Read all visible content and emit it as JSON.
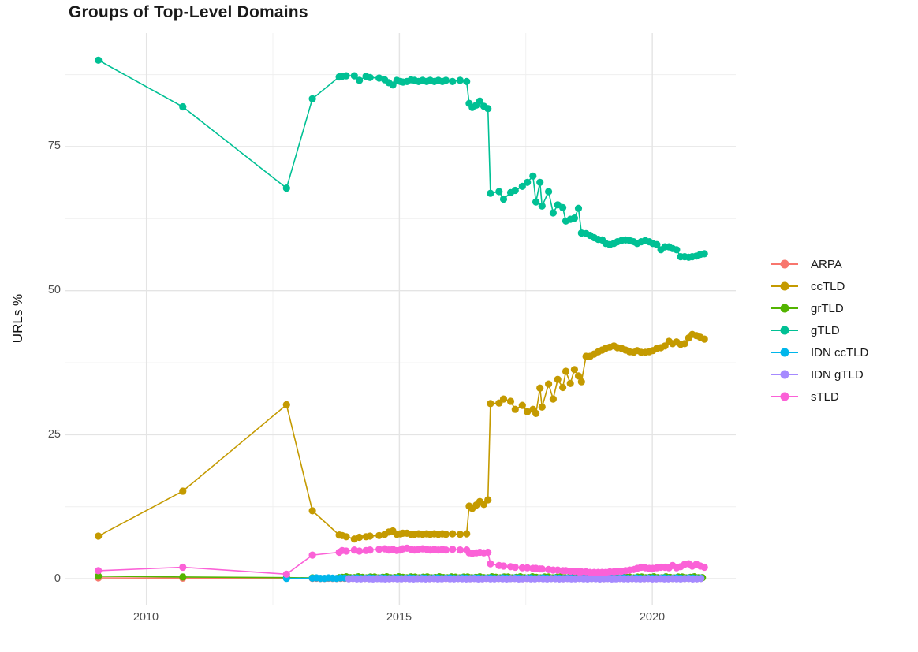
{
  "chart_data": {
    "type": "scatter",
    "title": "Groups of Top-Level Domains",
    "xlabel": "",
    "ylabel": "URLs %",
    "grid": "major+minor, light gray on white",
    "legend_position": "right",
    "xlim": [
      2008.4,
      2021.65
    ],
    "ylim": [
      -4.5,
      94.7
    ],
    "x_ticks": [
      2010,
      2015,
      2020
    ],
    "x_tick_labels": [
      "2010",
      "2015",
      "2020"
    ],
    "x_minor_gridlines": [
      2012.5,
      2017.5
    ],
    "y_ticks": [
      0,
      25,
      50,
      75
    ],
    "y_tick_labels": [
      "0",
      "25",
      "50",
      "75"
    ],
    "y_minor_gridlines": [
      12.5,
      37.5,
      62.5,
      87.5
    ],
    "series": [
      {
        "name": "ARPA",
        "color": "#F8766D",
        "points": [
          [
            2009.05,
            0.15
          ],
          [
            2010.72,
            0.1
          ],
          [
            2012.77,
            0.1
          ]
        ],
        "flat": {
          "from": 2013.28,
          "to": 2021.03,
          "step": 0.08,
          "value": 0.05,
          "wiggle": 0.03
        }
      },
      {
        "name": "ccTLD",
        "color": "#C49A00",
        "points": [
          [
            2009.05,
            7.4
          ],
          [
            2010.72,
            15.2
          ],
          [
            2012.77,
            30.2
          ],
          [
            2013.28,
            11.8
          ],
          [
            2013.81,
            7.6
          ],
          [
            2013.87,
            7.5
          ],
          [
            2013.95,
            7.3
          ],
          [
            2014.11,
            6.9
          ],
          [
            2014.21,
            7.2
          ],
          [
            2014.34,
            7.3
          ],
          [
            2014.42,
            7.4
          ],
          [
            2014.6,
            7.5
          ],
          [
            2014.71,
            7.7
          ],
          [
            2014.79,
            8.1
          ],
          [
            2014.87,
            8.3
          ],
          [
            2014.95,
            7.7
          ],
          [
            2015.02,
            7.8
          ],
          [
            2015.07,
            7.9
          ],
          [
            2015.15,
            7.9
          ],
          [
            2015.23,
            7.7
          ],
          [
            2015.3,
            7.7
          ],
          [
            2015.38,
            7.8
          ],
          [
            2015.46,
            7.7
          ],
          [
            2015.54,
            7.8
          ],
          [
            2015.61,
            7.7
          ],
          [
            2015.69,
            7.8
          ],
          [
            2015.77,
            7.7
          ],
          [
            2015.85,
            7.8
          ],
          [
            2015.92,
            7.7
          ],
          [
            2016.05,
            7.8
          ],
          [
            2016.2,
            7.7
          ],
          [
            2016.33,
            7.8
          ],
          [
            2016.38,
            12.6
          ],
          [
            2016.44,
            12.2
          ],
          [
            2016.52,
            12.8
          ],
          [
            2016.59,
            13.4
          ],
          [
            2016.67,
            12.9
          ],
          [
            2016.75,
            13.7
          ],
          [
            2016.8,
            30.4
          ],
          [
            2016.97,
            30.5
          ],
          [
            2017.06,
            31.2
          ],
          [
            2017.2,
            30.8
          ],
          [
            2017.29,
            29.4
          ],
          [
            2017.43,
            30.1
          ],
          [
            2017.53,
            29.0
          ],
          [
            2017.64,
            29.4
          ],
          [
            2017.7,
            28.7
          ],
          [
            2017.78,
            33.1
          ],
          [
            2017.82,
            29.8
          ],
          [
            2017.95,
            33.8
          ],
          [
            2018.04,
            31.2
          ],
          [
            2018.13,
            34.6
          ],
          [
            2018.23,
            33.2
          ],
          [
            2018.29,
            36.0
          ],
          [
            2018.38,
            33.9
          ],
          [
            2018.46,
            36.3
          ],
          [
            2018.54,
            35.2
          ],
          [
            2018.6,
            34.2
          ],
          [
            2018.69,
            38.6
          ],
          [
            2018.77,
            38.6
          ],
          [
            2018.85,
            39.0
          ],
          [
            2018.93,
            39.4
          ],
          [
            2019.01,
            39.7
          ],
          [
            2019.08,
            40.0
          ],
          [
            2019.16,
            40.2
          ],
          [
            2019.24,
            40.4
          ],
          [
            2019.31,
            40.1
          ],
          [
            2019.39,
            40.0
          ],
          [
            2019.47,
            39.7
          ],
          [
            2019.55,
            39.4
          ],
          [
            2019.63,
            39.3
          ],
          [
            2019.7,
            39.6
          ],
          [
            2019.78,
            39.3
          ],
          [
            2019.86,
            39.3
          ],
          [
            2019.94,
            39.4
          ],
          [
            2020.01,
            39.6
          ],
          [
            2020.09,
            40.0
          ],
          [
            2020.17,
            40.1
          ],
          [
            2020.25,
            40.4
          ],
          [
            2020.33,
            41.2
          ],
          [
            2020.4,
            40.8
          ],
          [
            2020.48,
            41.1
          ],
          [
            2020.56,
            40.7
          ],
          [
            2020.64,
            40.8
          ],
          [
            2020.72,
            41.8
          ],
          [
            2020.79,
            42.4
          ],
          [
            2020.87,
            42.2
          ],
          [
            2020.95,
            41.9
          ],
          [
            2021.03,
            41.6
          ]
        ]
      },
      {
        "name": "grTLD",
        "color": "#53B400",
        "points": [
          [
            2009.05,
            0.45
          ],
          [
            2010.72,
            0.3
          ],
          [
            2012.77,
            0.2
          ],
          [
            2013.28,
            0.15
          ],
          [
            2013.81,
            0.2
          ]
        ],
        "flat": {
          "from": 2013.87,
          "to": 2021.03,
          "step": 0.08,
          "value": 0.25,
          "wiggle": 0.1
        }
      },
      {
        "name": "gTLD",
        "color": "#00C094",
        "points": [
          [
            2009.05,
            90.0
          ],
          [
            2010.72,
            81.9
          ],
          [
            2012.77,
            67.8
          ],
          [
            2013.28,
            83.3
          ],
          [
            2013.81,
            87.1
          ],
          [
            2013.87,
            87.2
          ],
          [
            2013.95,
            87.3
          ],
          [
            2014.11,
            87.3
          ],
          [
            2014.21,
            86.5
          ],
          [
            2014.34,
            87.2
          ],
          [
            2014.42,
            87.0
          ],
          [
            2014.6,
            86.9
          ],
          [
            2014.71,
            86.6
          ],
          [
            2014.79,
            86.1
          ],
          [
            2014.87,
            85.7
          ],
          [
            2014.95,
            86.5
          ],
          [
            2015.02,
            86.3
          ],
          [
            2015.07,
            86.2
          ],
          [
            2015.15,
            86.3
          ],
          [
            2015.23,
            86.6
          ],
          [
            2015.3,
            86.5
          ],
          [
            2015.38,
            86.3
          ],
          [
            2015.46,
            86.5
          ],
          [
            2015.54,
            86.3
          ],
          [
            2015.61,
            86.5
          ],
          [
            2015.69,
            86.3
          ],
          [
            2015.77,
            86.5
          ],
          [
            2015.85,
            86.3
          ],
          [
            2015.92,
            86.5
          ],
          [
            2016.05,
            86.3
          ],
          [
            2016.2,
            86.5
          ],
          [
            2016.33,
            86.3
          ],
          [
            2016.38,
            82.5
          ],
          [
            2016.44,
            81.8
          ],
          [
            2016.52,
            82.2
          ],
          [
            2016.59,
            82.9
          ],
          [
            2016.67,
            82.0
          ],
          [
            2016.75,
            81.6
          ],
          [
            2016.8,
            66.9
          ],
          [
            2016.97,
            67.2
          ],
          [
            2017.06,
            65.9
          ],
          [
            2017.2,
            67.0
          ],
          [
            2017.29,
            67.4
          ],
          [
            2017.43,
            68.1
          ],
          [
            2017.53,
            68.8
          ],
          [
            2017.64,
            69.9
          ],
          [
            2017.7,
            65.4
          ],
          [
            2017.78,
            68.8
          ],
          [
            2017.82,
            64.7
          ],
          [
            2017.95,
            67.2
          ],
          [
            2018.04,
            63.5
          ],
          [
            2018.13,
            64.9
          ],
          [
            2018.23,
            64.4
          ],
          [
            2018.29,
            62.1
          ],
          [
            2018.38,
            62.4
          ],
          [
            2018.46,
            62.6
          ],
          [
            2018.54,
            64.3
          ],
          [
            2018.6,
            60.0
          ],
          [
            2018.69,
            59.9
          ],
          [
            2018.77,
            59.6
          ],
          [
            2018.85,
            59.2
          ],
          [
            2018.93,
            58.9
          ],
          [
            2019.01,
            58.8
          ],
          [
            2019.08,
            58.2
          ],
          [
            2019.16,
            58.0
          ],
          [
            2019.24,
            58.2
          ],
          [
            2019.31,
            58.5
          ],
          [
            2019.39,
            58.7
          ],
          [
            2019.47,
            58.8
          ],
          [
            2019.55,
            58.7
          ],
          [
            2019.63,
            58.5
          ],
          [
            2019.7,
            58.2
          ],
          [
            2019.78,
            58.5
          ],
          [
            2019.86,
            58.7
          ],
          [
            2019.94,
            58.5
          ],
          [
            2020.01,
            58.2
          ],
          [
            2020.09,
            58.0
          ],
          [
            2020.17,
            57.1
          ],
          [
            2020.25,
            57.6
          ],
          [
            2020.33,
            57.6
          ],
          [
            2020.4,
            57.3
          ],
          [
            2020.48,
            57.1
          ],
          [
            2020.56,
            55.9
          ],
          [
            2020.64,
            55.9
          ],
          [
            2020.72,
            55.8
          ],
          [
            2020.79,
            55.9
          ],
          [
            2020.87,
            56.0
          ],
          [
            2020.95,
            56.3
          ],
          [
            2021.03,
            56.4
          ]
        ]
      },
      {
        "name": "IDN ccTLD",
        "color": "#00B6EB",
        "points": [
          [
            2012.77,
            0.05
          ]
        ],
        "flat": {
          "from": 2013.28,
          "to": 2021.03,
          "step": 0.08,
          "value": 0.1,
          "wiggle": 0.05
        }
      },
      {
        "name": "IDN gTLD",
        "color": "#A58AFF",
        "points": [],
        "flat": {
          "from": 2014.0,
          "to": 2021.03,
          "step": 0.08,
          "value": 0.0,
          "wiggle": 0.04
        }
      },
      {
        "name": "sTLD",
        "color": "#FB61D7",
        "points": [
          [
            2009.05,
            1.4
          ],
          [
            2010.72,
            2.0
          ],
          [
            2012.77,
            0.8
          ],
          [
            2013.28,
            4.1
          ],
          [
            2013.81,
            4.6
          ],
          [
            2013.87,
            4.9
          ],
          [
            2013.95,
            4.8
          ],
          [
            2014.11,
            5.0
          ],
          [
            2014.21,
            4.8
          ],
          [
            2014.34,
            4.9
          ],
          [
            2014.42,
            5.0
          ],
          [
            2014.6,
            5.1
          ],
          [
            2014.71,
            5.2
          ],
          [
            2014.79,
            5.0
          ],
          [
            2014.87,
            5.1
          ],
          [
            2014.95,
            4.9
          ],
          [
            2015.02,
            5.0
          ],
          [
            2015.07,
            5.2
          ],
          [
            2015.15,
            5.3
          ],
          [
            2015.23,
            5.1
          ],
          [
            2015.3,
            5.0
          ],
          [
            2015.38,
            5.1
          ],
          [
            2015.46,
            5.2
          ],
          [
            2015.54,
            5.1
          ],
          [
            2015.61,
            5.0
          ],
          [
            2015.69,
            5.1
          ],
          [
            2015.77,
            5.0
          ],
          [
            2015.85,
            5.1
          ],
          [
            2015.92,
            5.0
          ],
          [
            2016.05,
            5.1
          ],
          [
            2016.2,
            5.0
          ],
          [
            2016.33,
            5.0
          ],
          [
            2016.38,
            4.5
          ],
          [
            2016.44,
            4.4
          ],
          [
            2016.52,
            4.5
          ],
          [
            2016.59,
            4.6
          ],
          [
            2016.67,
            4.5
          ],
          [
            2016.75,
            4.6
          ],
          [
            2016.8,
            2.6
          ],
          [
            2016.97,
            2.3
          ],
          [
            2017.06,
            2.2
          ],
          [
            2017.2,
            2.1
          ],
          [
            2017.29,
            2.0
          ],
          [
            2017.43,
            1.9
          ],
          [
            2017.53,
            1.9
          ],
          [
            2017.64,
            1.8
          ],
          [
            2017.7,
            1.8
          ],
          [
            2017.78,
            1.7
          ],
          [
            2017.82,
            1.7
          ],
          [
            2017.95,
            1.6
          ],
          [
            2018.04,
            1.5
          ],
          [
            2018.13,
            1.5
          ],
          [
            2018.23,
            1.4
          ],
          [
            2018.29,
            1.4
          ],
          [
            2018.38,
            1.3
          ],
          [
            2018.46,
            1.3
          ],
          [
            2018.54,
            1.2
          ],
          [
            2018.6,
            1.2
          ],
          [
            2018.69,
            1.2
          ],
          [
            2018.77,
            1.1
          ],
          [
            2018.85,
            1.1
          ],
          [
            2018.93,
            1.1
          ],
          [
            2019.01,
            1.1
          ],
          [
            2019.08,
            1.1
          ],
          [
            2019.16,
            1.2
          ],
          [
            2019.24,
            1.2
          ],
          [
            2019.31,
            1.3
          ],
          [
            2019.39,
            1.3
          ],
          [
            2019.47,
            1.4
          ],
          [
            2019.55,
            1.5
          ],
          [
            2019.63,
            1.6
          ],
          [
            2019.7,
            1.8
          ],
          [
            2019.78,
            2.0
          ],
          [
            2019.86,
            1.9
          ],
          [
            2019.94,
            1.8
          ],
          [
            2020.01,
            1.8
          ],
          [
            2020.09,
            1.9
          ],
          [
            2020.17,
            2.0
          ],
          [
            2020.25,
            2.0
          ],
          [
            2020.33,
            1.9
          ],
          [
            2020.4,
            2.3
          ],
          [
            2020.48,
            1.9
          ],
          [
            2020.56,
            2.1
          ],
          [
            2020.64,
            2.5
          ],
          [
            2020.72,
            2.6
          ],
          [
            2020.79,
            2.2
          ],
          [
            2020.87,
            2.5
          ],
          [
            2020.95,
            2.2
          ],
          [
            2021.03,
            2.0
          ]
        ]
      }
    ],
    "style": {
      "major_grid_color": "#E4E4E4",
      "minor_grid_color": "#EFEFEF",
      "point_radius": 4.6,
      "line_width": 1.6
    }
  }
}
